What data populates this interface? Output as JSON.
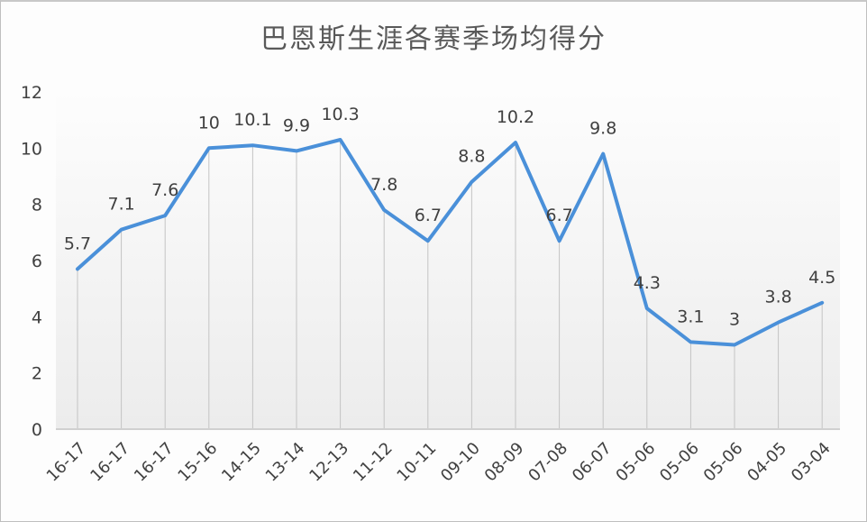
{
  "chart_data": {
    "type": "line",
    "title": "巴恩斯生涯各赛季场均得分",
    "xlabel": "",
    "ylabel": "",
    "ylim": [
      0,
      12
    ],
    "yticks": [
      0,
      2,
      4,
      6,
      8,
      10,
      12
    ],
    "grid": "vertical drop lines only",
    "legend": "none",
    "categories": [
      "16-17",
      "16-17",
      "16-17",
      "15-16",
      "14-15",
      "13-14",
      "12-13",
      "11-12",
      "10-11",
      "09-10",
      "08-09",
      "07-08",
      "06-07",
      "05-06",
      "05-06",
      "05-06",
      "04-05",
      "03-04"
    ],
    "series": [
      {
        "name": "场均得分",
        "color": "#4a90d9",
        "values": [
          5.7,
          7.1,
          7.6,
          10,
          10.1,
          9.9,
          10.3,
          7.8,
          6.7,
          8.8,
          10.2,
          6.7,
          9.8,
          4.3,
          3.1,
          3,
          3.8,
          4.5
        ],
        "data_labels": [
          "5.7",
          "7.1",
          "7.6",
          "10",
          "10.1",
          "9.9",
          "10.3",
          "7.8",
          "6.7",
          "8.8",
          "10.2",
          "6.7",
          "9.8",
          "4.3",
          "3.1",
          "3",
          "3.8",
          "4.5"
        ]
      }
    ]
  }
}
